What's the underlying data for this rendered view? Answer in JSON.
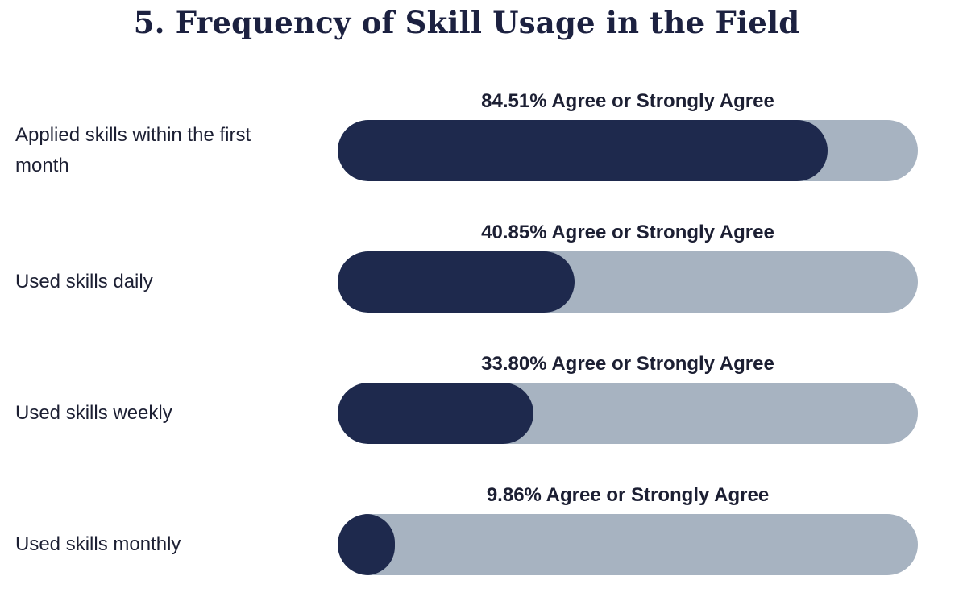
{
  "chart_data": {
    "type": "bar",
    "title": "5. Frequency of Skill Usage in the Field",
    "value_suffix": "% Agree or Strongly Agree",
    "categories": [
      "Applied skills within the first month",
      "Used skills daily",
      "Used skills weekly",
      "Used skills monthly"
    ],
    "values": [
      84.51,
      40.85,
      33.8,
      9.86
    ],
    "value_labels": [
      "84.51% Agree or Strongly Agree",
      "40.85% Agree or Strongly Agree",
      "33.80% Agree or Strongly Agree",
      "9.86% Agree or Strongly Agree"
    ],
    "ylim": [
      0,
      100
    ],
    "colors": {
      "fill": "#1e294d",
      "track": "#a7b3c1"
    }
  }
}
